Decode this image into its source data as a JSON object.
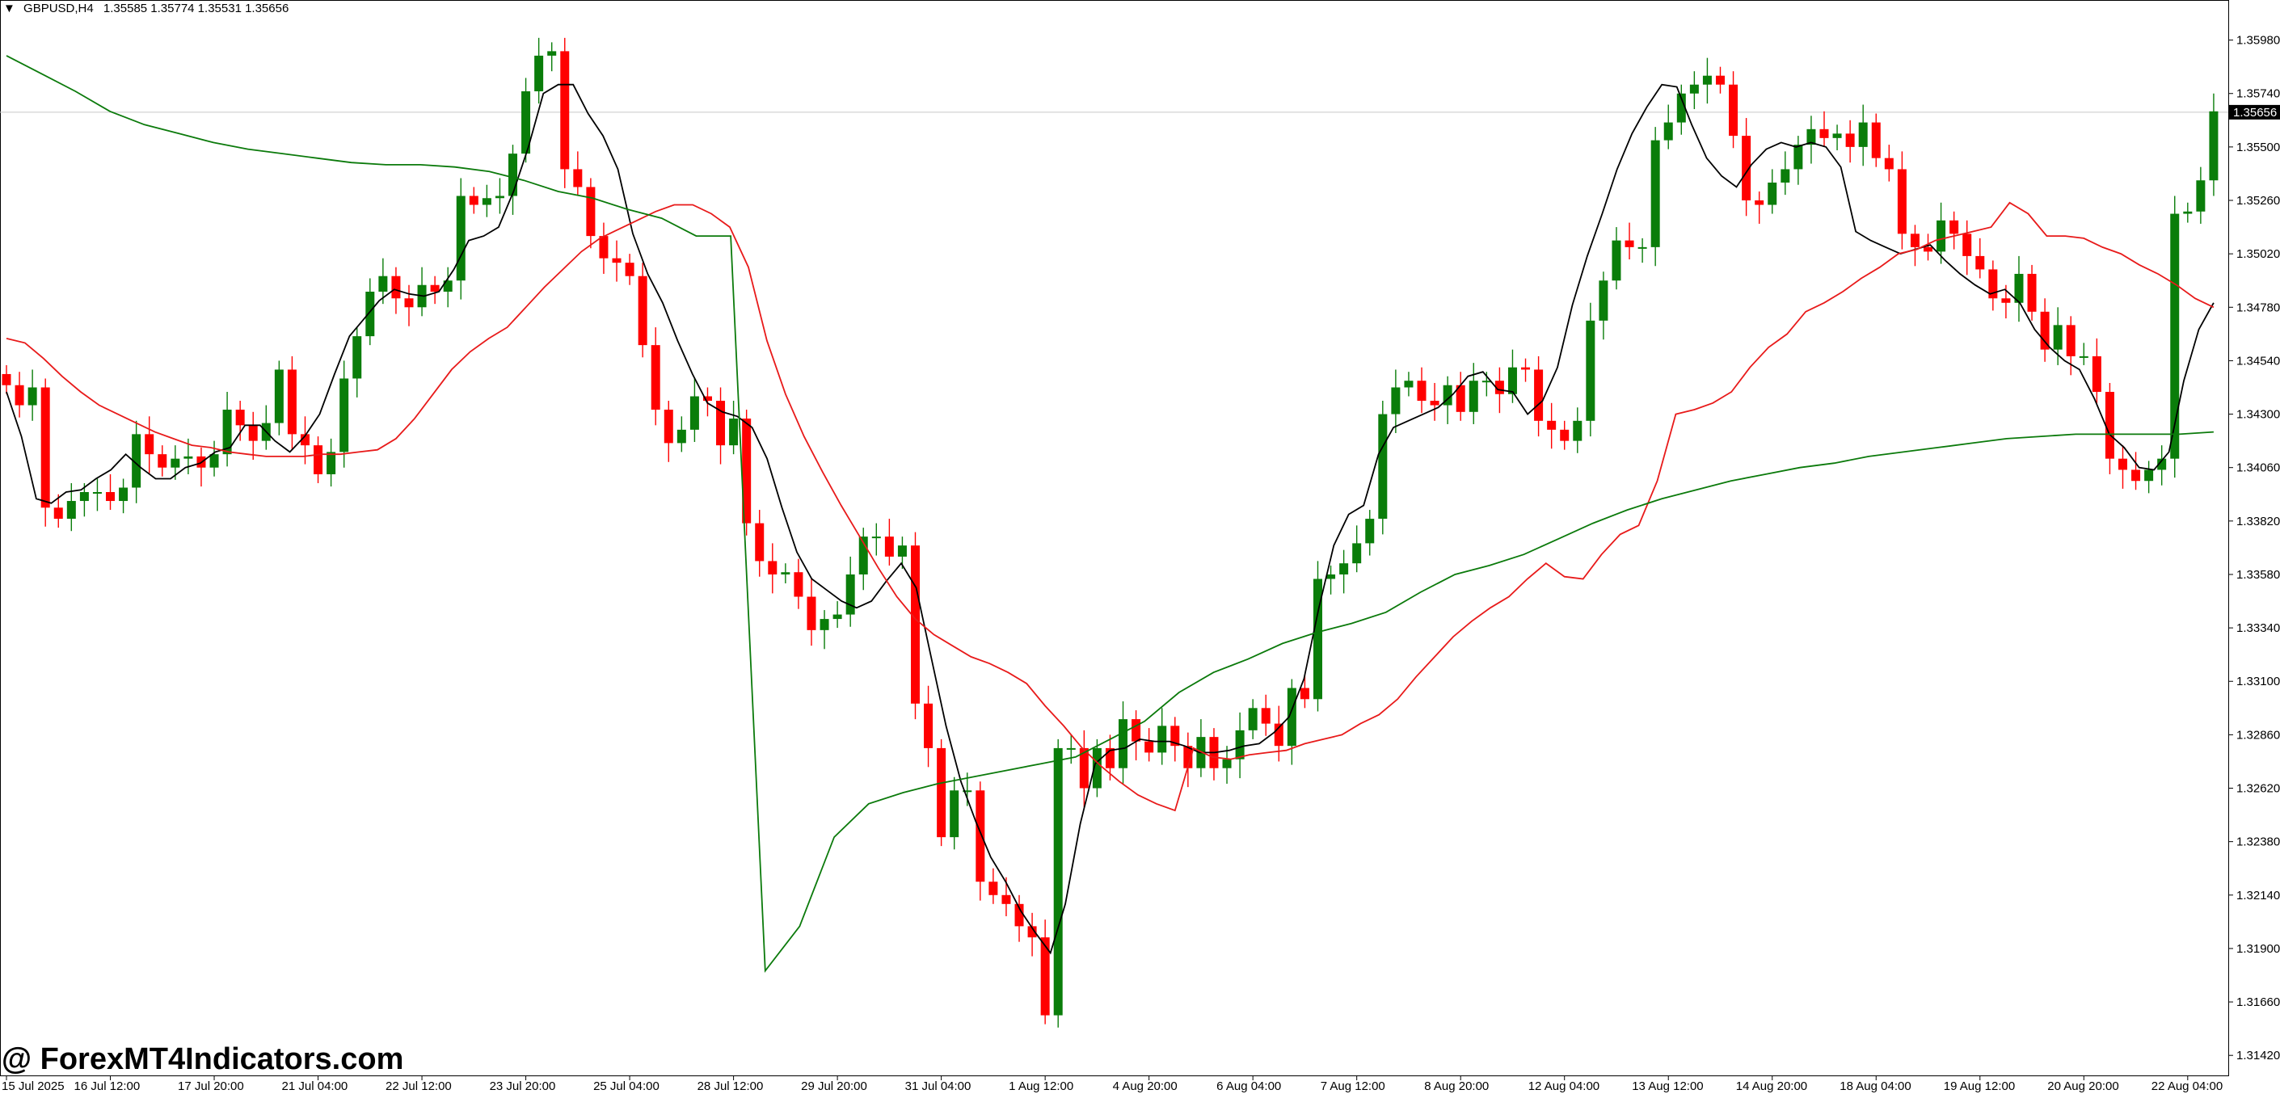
{
  "header": {
    "symbol": "GBPUSD,H4",
    "ohlc": "1.35585 1.35774 1.35531 1.35656",
    "menu_icon": "triangle-down-icon"
  },
  "watermark": "@ ForexMT4Indicators.com",
  "colors": {
    "bull": "#0a7d0a",
    "bear": "#ff0000",
    "fast_ma": "#000000",
    "mid_ma": "#e81a1a",
    "slow_ma": "#0b7a0b",
    "background": "#ffffff",
    "axis": "#000000",
    "price_line": "#c8c8c8"
  },
  "chart_data": {
    "type": "candlestick",
    "symbol": "GBPUSD",
    "timeframe": "H4",
    "current_price_label": "1.35656",
    "current_price": 1.35656,
    "ylim": [
      1.3133,
      1.3616
    ],
    "y_ticks": [
      "1.35980",
      "1.35740",
      "1.35500",
      "1.35260",
      "1.35020",
      "1.34780",
      "1.34540",
      "1.34300",
      "1.34060",
      "1.33820",
      "1.33580",
      "1.33340",
      "1.33100",
      "1.32860",
      "1.32620",
      "1.32380",
      "1.32140",
      "1.31900",
      "1.31660",
      "1.31420"
    ],
    "x_ticks": [
      {
        "label": "15 Jul 2025",
        "bar": 0
      },
      {
        "label": "16 Jul 12:00",
        "bar": 8
      },
      {
        "label": "17 Jul 20:00",
        "bar": 16
      },
      {
        "label": "21 Jul 04:00",
        "bar": 24
      },
      {
        "label": "22 Jul 12:00",
        "bar": 32
      },
      {
        "label": "23 Jul 20:00",
        "bar": 40
      },
      {
        "label": "25 Jul 04:00",
        "bar": 48
      },
      {
        "label": "28 Jul 12:00",
        "bar": 56
      },
      {
        "label": "29 Jul 20:00",
        "bar": 64
      },
      {
        "label": "31 Jul 04:00",
        "bar": 72
      },
      {
        "label": "1 Aug 12:00",
        "bar": 80
      },
      {
        "label": "4 Aug 20:00",
        "bar": 88
      },
      {
        "label": "6 Aug 04:00",
        "bar": 96
      },
      {
        "label": "7 Aug 12:00",
        "bar": 104
      },
      {
        "label": "8 Aug 20:00",
        "bar": 112
      },
      {
        "label": "12 Aug 04:00",
        "bar": 120
      },
      {
        "label": "13 Aug 12:00",
        "bar": 128
      },
      {
        "label": "14 Aug 20:00",
        "bar": 136
      },
      {
        "label": "18 Aug 04:00",
        "bar": 144
      },
      {
        "label": "19 Aug 12:00",
        "bar": 152
      },
      {
        "label": "20 Aug 20:00",
        "bar": 160
      },
      {
        "label": "22 Aug 04:00",
        "bar": 168
      }
    ],
    "close": [
      1.3443,
      1.3434,
      1.3442,
      1.3388,
      1.3383,
      1.3391,
      1.3395,
      1.3395,
      1.3391,
      1.3397,
      1.3421,
      1.3412,
      1.3406,
      1.341,
      1.3411,
      1.3406,
      1.3412,
      1.3432,
      1.3425,
      1.3418,
      1.3426,
      1.345,
      1.3421,
      1.3416,
      1.3403,
      1.3413,
      1.3446,
      1.3465,
      1.3485,
      1.3492,
      1.3482,
      1.3478,
      1.3488,
      1.3485,
      1.349,
      1.3528,
      1.3524,
      1.3527,
      1.3528,
      1.3547,
      1.3575,
      1.3591,
      1.3593,
      1.354,
      1.3532,
      1.351,
      1.35,
      1.3498,
      1.3492,
      1.3461,
      1.3432,
      1.3417,
      1.3423,
      1.3438,
      1.3436,
      1.3416,
      1.3428,
      1.3381,
      1.3364,
      1.3358,
      1.3359,
      1.3348,
      1.3333,
      1.3338,
      1.334,
      1.3358,
      1.3375,
      1.3375,
      1.3366,
      1.3371,
      1.33,
      1.328,
      1.324,
      1.3261,
      1.3261,
      1.322,
      1.3214,
      1.321,
      1.32,
      1.3195,
      1.316,
      1.328,
      1.328,
      1.3262,
      1.328,
      1.3271,
      1.3293,
      1.3283,
      1.3278,
      1.329,
      1.3281,
      1.3271,
      1.3285,
      1.3271,
      1.3275,
      1.3288,
      1.3298,
      1.3291,
      1.3281,
      1.3307,
      1.3302,
      1.3356,
      1.3358,
      1.3363,
      1.3372,
      1.3383,
      1.343,
      1.3442,
      1.3445,
      1.3436,
      1.3434,
      1.3443,
      1.3431,
      1.3445,
      1.3445,
      1.3439,
      1.3451,
      1.345,
      1.3427,
      1.3423,
      1.3418,
      1.3427,
      1.3472,
      1.349,
      1.3508,
      1.3505,
      1.3505,
      1.3553,
      1.3561,
      1.3574,
      1.3578,
      1.3582,
      1.3578,
      1.3555,
      1.3526,
      1.3524,
      1.3534,
      1.354,
      1.3551,
      1.3558,
      1.3554,
      1.3556,
      1.355,
      1.3561,
      1.3545,
      1.354,
      1.3511,
      1.3505,
      1.3503,
      1.3517,
      1.3511,
      1.3501,
      1.3495,
      1.3482,
      1.348,
      1.3493,
      1.3476,
      1.3459,
      1.347,
      1.3456,
      1.3456,
      1.344,
      1.341,
      1.3405,
      1.34,
      1.3405,
      1.341,
      1.352,
      1.3521,
      1.3535,
      1.3566
    ],
    "fast_ma": [
      1.344,
      1.342,
      1.3392,
      1.339,
      1.3395,
      1.3396,
      1.3401,
      1.3405,
      1.3412,
      1.3406,
      1.3401,
      1.3401,
      1.3406,
      1.3408,
      1.3413,
      1.3415,
      1.3425,
      1.3425,
      1.3418,
      1.3413,
      1.342,
      1.343,
      1.3448,
      1.3465,
      1.3473,
      1.3481,
      1.3486,
      1.3484,
      1.3483,
      1.3485,
      1.3495,
      1.3508,
      1.351,
      1.3514,
      1.353,
      1.355,
      1.3574,
      1.3578,
      1.3578,
      1.3565,
      1.3555,
      1.354,
      1.3511,
      1.3493,
      1.348,
      1.3463,
      1.3448,
      1.3435,
      1.3431,
      1.3429,
      1.3424,
      1.341,
      1.3388,
      1.3368,
      1.3356,
      1.3351,
      1.3346,
      1.3343,
      1.3346,
      1.3355,
      1.3363,
      1.3352,
      1.3321,
      1.329,
      1.3265,
      1.3247,
      1.3231,
      1.322,
      1.3207,
      1.3197,
      1.3188,
      1.321,
      1.3246,
      1.3273,
      1.3279,
      1.328,
      1.3284,
      1.3283,
      1.3283,
      1.3281,
      1.3278,
      1.3278,
      1.3279,
      1.3281,
      1.3282,
      1.3287,
      1.3294,
      1.3311,
      1.3343,
      1.3371,
      1.3385,
      1.3389,
      1.3412,
      1.3424,
      1.3427,
      1.343,
      1.3433,
      1.3439,
      1.3447,
      1.3449,
      1.3441,
      1.344,
      1.343,
      1.3436,
      1.3451,
      1.3479,
      1.3501,
      1.352,
      1.354,
      1.3556,
      1.3568,
      1.3578,
      1.3577,
      1.356,
      1.3545,
      1.3537,
      1.3532,
      1.3542,
      1.3549,
      1.3552,
      1.355,
      1.3552,
      1.355,
      1.3541,
      1.3512,
      1.3508,
      1.3505,
      1.3502,
      1.3504,
      1.3506,
      1.3499,
      1.3493,
      1.3488,
      1.3484,
      1.3486,
      1.348,
      1.3468,
      1.346,
      1.3454,
      1.345,
      1.3437,
      1.3421,
      1.3415,
      1.3406,
      1.3405,
      1.3413,
      1.3445,
      1.3468,
      1.348
    ],
    "fast_ma_start_bar": 0,
    "mid_ma": [
      1.3464,
      1.3462,
      1.3455,
      1.3447,
      1.344,
      1.3434,
      1.343,
      1.3426,
      1.3422,
      1.3419,
      1.3416,
      1.3415,
      1.3413,
      1.3412,
      1.3411,
      1.3411,
      1.3411,
      1.3412,
      1.3412,
      1.3413,
      1.3414,
      1.3419,
      1.3428,
      1.3439,
      1.345,
      1.3458,
      1.3464,
      1.3469,
      1.3478,
      1.3487,
      1.3495,
      1.3503,
      1.3509,
      1.3513,
      1.3517,
      1.3521,
      1.3524,
      1.3524,
      1.352,
      1.3514,
      1.3496,
      1.3463,
      1.3439,
      1.342,
      1.3404,
      1.3389,
      1.3375,
      1.3361,
      1.3348,
      1.3338,
      1.3331,
      1.3326,
      1.3321,
      1.3318,
      1.3314,
      1.3309,
      1.3299,
      1.329,
      1.328,
      1.3272,
      1.3265,
      1.3259,
      1.3255,
      1.3252,
      1.328,
      1.3276,
      1.3275,
      1.3277,
      1.3278,
      1.3279,
      1.3282,
      1.3284,
      1.3286,
      1.3291,
      1.3295,
      1.3302,
      1.3312,
      1.3321,
      1.333,
      1.3337,
      1.3343,
      1.3348,
      1.3356,
      1.3363,
      1.3357,
      1.3356,
      1.3367,
      1.3376,
      1.338,
      1.34,
      1.343,
      1.3432,
      1.3435,
      1.344,
      1.3451,
      1.346,
      1.3466,
      1.3476,
      1.348,
      1.3485,
      1.3491,
      1.3496,
      1.3502,
      1.3504,
      1.3508,
      1.351,
      1.3512,
      1.3514,
      1.3525,
      1.352,
      1.351,
      1.351,
      1.3509,
      1.3505,
      1.3502,
      1.3497,
      1.3493,
      1.3488,
      1.3482,
      1.3478
    ],
    "mid_ma_start_bar": 0,
    "slow_ma": [
      1.3591,
      1.3583,
      1.3575,
      1.3566,
      1.356,
      1.3556,
      1.3552,
      1.3549,
      1.3547,
      1.3545,
      1.3543,
      1.3542,
      1.3542,
      1.3541,
      1.3539,
      1.3535,
      1.353,
      1.3527,
      1.3522,
      1.3518,
      1.351,
      1.351,
      1.318,
      1.32,
      1.324,
      1.3255,
      1.326,
      1.3264,
      1.3267,
      1.327,
      1.3273,
      1.3276,
      1.3284,
      1.3292,
      1.3305,
      1.3314,
      1.332,
      1.3327,
      1.3332,
      1.3336,
      1.3341,
      1.335,
      1.3358,
      1.3362,
      1.3367,
      1.3374,
      1.3381,
      1.3387,
      1.3392,
      1.3396,
      1.34,
      1.3403,
      1.3406,
      1.3408,
      1.3411,
      1.3413,
      1.3415,
      1.3417,
      1.3419,
      1.342,
      1.3421,
      1.3421,
      1.3421,
      1.3421,
      1.3422
    ],
    "slow_ma_start_bar": 0
  }
}
